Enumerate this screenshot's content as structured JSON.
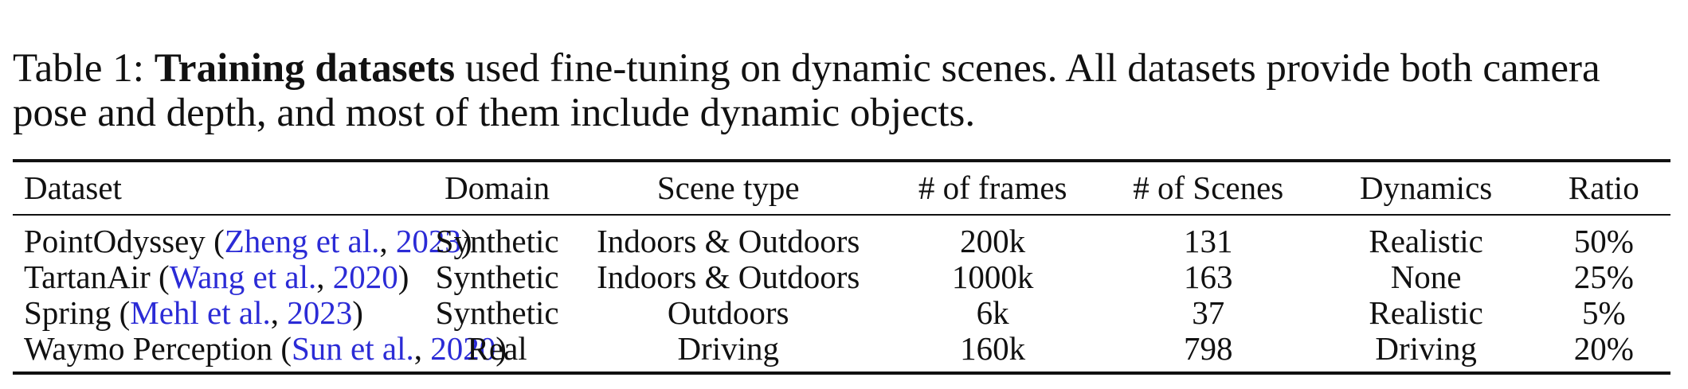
{
  "caption": {
    "prefix": "Table 1: ",
    "bold": "Training datasets",
    "line1_rest": " used fine-tuning on dynamic scenes.  All datasets provide both camera",
    "line2": "pose and depth, and most of them include dynamic objects."
  },
  "table": {
    "headers": [
      "Dataset",
      "Domain",
      "Scene type",
      "# of frames",
      "# of Scenes",
      "Dynamics",
      "Ratio"
    ],
    "rows": [
      {
        "name": "PointOdyssey",
        "cite_author": "Zheng et al.",
        "cite_year": "2023",
        "domain": "Synthetic",
        "scene": "Indoors & Outdoors",
        "frames": "200k",
        "scenes": "131",
        "dynamics": "Realistic",
        "ratio": "50%"
      },
      {
        "name": "TartanAir",
        "cite_author": "Wang et al.",
        "cite_year": "2020",
        "domain": "Synthetic",
        "scene": "Indoors & Outdoors",
        "frames": "1000k",
        "scenes": "163",
        "dynamics": "None",
        "ratio": "25%"
      },
      {
        "name": "Spring",
        "cite_author": "Mehl et al.",
        "cite_year": "2023",
        "domain": "Synthetic",
        "scene": "Outdoors",
        "frames": "6k",
        "scenes": "37",
        "dynamics": "Realistic",
        "ratio": "5%"
      },
      {
        "name": "Waymo Perception",
        "cite_author": "Sun et al.",
        "cite_year": "2020",
        "domain": "Real",
        "scene": "Driving",
        "frames": "160k",
        "scenes": "798",
        "dynamics": "Driving",
        "ratio": "20%"
      }
    ]
  },
  "colors": {
    "citation": "#2b2bd6",
    "text": "#111111"
  }
}
